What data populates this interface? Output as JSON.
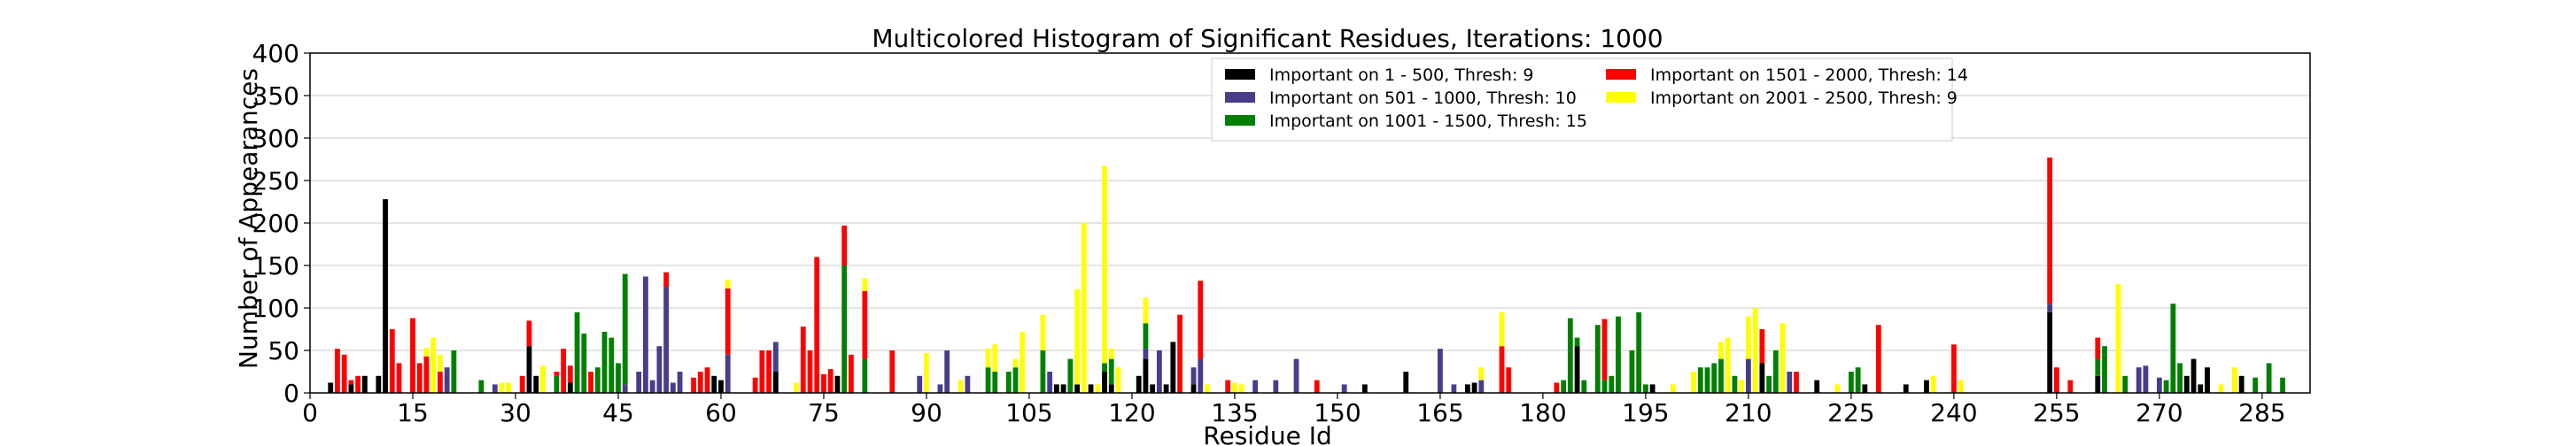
{
  "chart_data": {
    "type": "bar",
    "stacked": true,
    "title": "Multicolored Histogram of Significant Residues, Iterations: 1000",
    "xlabel": "Residue Id",
    "ylabel": "Number of Appearances",
    "xlim": [
      0,
      292
    ],
    "ylim": [
      0,
      400
    ],
    "xticks": [
      0,
      15,
      30,
      45,
      60,
      75,
      90,
      105,
      120,
      135,
      150,
      165,
      180,
      195,
      210,
      225,
      240,
      255,
      270,
      285
    ],
    "yticks": [
      0,
      50,
      100,
      150,
      200,
      250,
      300,
      350,
      400
    ],
    "grid": true,
    "legend_position": "top-center",
    "colors": {
      "s1": "#000000",
      "s2": "#483d8b",
      "s3": "#008000",
      "s4": "#ff0000",
      "s5": "#ffff00"
    },
    "series": [
      {
        "key": "s1",
        "name": "Important on 1 - 500, Thresh: 9"
      },
      {
        "key": "s2",
        "name": "Important on 501 - 1000, Thresh: 10"
      },
      {
        "key": "s3",
        "name": "Important on 1001 - 1500, Thresh: 15"
      },
      {
        "key": "s4",
        "name": "Important on 1501 - 2000, Thresh: 14"
      },
      {
        "key": "s5",
        "name": "Important on 2001 - 2500, Thresh: 9"
      }
    ],
    "bars": [
      [
        3,
        12,
        0,
        0,
        0,
        0
      ],
      [
        4,
        0,
        0,
        0,
        52,
        0
      ],
      [
        5,
        0,
        0,
        0,
        45,
        0
      ],
      [
        6,
        10,
        0,
        0,
        5,
        0
      ],
      [
        7,
        0,
        0,
        0,
        20,
        0
      ],
      [
        8,
        20,
        0,
        0,
        0,
        0
      ],
      [
        10,
        20,
        0,
        0,
        0,
        0
      ],
      [
        11,
        228,
        0,
        0,
        0,
        0
      ],
      [
        12,
        0,
        0,
        0,
        75,
        0
      ],
      [
        13,
        0,
        0,
        0,
        35,
        0
      ],
      [
        15,
        0,
        0,
        0,
        88,
        0
      ],
      [
        16,
        0,
        0,
        0,
        35,
        0
      ],
      [
        17,
        0,
        0,
        0,
        43,
        10
      ],
      [
        18,
        0,
        0,
        0,
        0,
        65
      ],
      [
        19,
        0,
        0,
        0,
        25,
        20
      ],
      [
        20,
        0,
        30,
        0,
        0,
        0
      ],
      [
        21,
        0,
        0,
        50,
        0,
        0
      ],
      [
        25,
        0,
        0,
        15,
        0,
        0
      ],
      [
        27,
        0,
        10,
        0,
        0,
        0
      ],
      [
        28,
        0,
        0,
        0,
        0,
        12
      ],
      [
        29,
        0,
        0,
        0,
        0,
        12
      ],
      [
        31,
        0,
        0,
        0,
        20,
        0
      ],
      [
        32,
        55,
        0,
        0,
        30,
        0
      ],
      [
        33,
        20,
        0,
        0,
        0,
        0
      ],
      [
        34,
        0,
        0,
        0,
        0,
        32
      ],
      [
        36,
        0,
        0,
        20,
        5,
        0
      ],
      [
        37,
        0,
        0,
        0,
        52,
        0
      ],
      [
        38,
        12,
        0,
        0,
        20,
        0
      ],
      [
        39,
        0,
        0,
        95,
        0,
        0
      ],
      [
        40,
        0,
        0,
        70,
        0,
        0
      ],
      [
        41,
        0,
        0,
        0,
        25,
        0
      ],
      [
        42,
        0,
        0,
        30,
        0,
        0
      ],
      [
        43,
        0,
        0,
        72,
        0,
        0
      ],
      [
        44,
        0,
        0,
        65,
        0,
        0
      ],
      [
        45,
        0,
        0,
        35,
        0,
        0
      ],
      [
        46,
        0,
        10,
        130,
        0,
        0
      ],
      [
        48,
        0,
        25,
        0,
        0,
        0
      ],
      [
        49,
        0,
        137,
        0,
        0,
        0
      ],
      [
        50,
        0,
        15,
        0,
        0,
        0
      ],
      [
        51,
        0,
        55,
        0,
        0,
        0
      ],
      [
        52,
        0,
        125,
        0,
        17,
        0
      ],
      [
        53,
        0,
        12,
        0,
        0,
        0
      ],
      [
        54,
        0,
        25,
        0,
        0,
        0
      ],
      [
        56,
        0,
        0,
        0,
        18,
        0
      ],
      [
        57,
        0,
        0,
        0,
        25,
        0
      ],
      [
        58,
        0,
        0,
        0,
        30,
        0
      ],
      [
        59,
        20,
        0,
        0,
        0,
        0
      ],
      [
        60,
        15,
        0,
        0,
        0,
        0
      ],
      [
        61,
        0,
        45,
        0,
        78,
        10
      ],
      [
        65,
        0,
        0,
        0,
        18,
        0
      ],
      [
        66,
        0,
        0,
        0,
        50,
        0
      ],
      [
        67,
        0,
        0,
        0,
        50,
        0
      ],
      [
        68,
        25,
        35,
        0,
        0,
        0
      ],
      [
        71,
        0,
        0,
        0,
        0,
        12
      ],
      [
        72,
        0,
        0,
        0,
        78,
        0
      ],
      [
        73,
        0,
        0,
        0,
        50,
        0
      ],
      [
        74,
        0,
        0,
        0,
        160,
        0
      ],
      [
        75,
        0,
        0,
        0,
        22,
        0
      ],
      [
        76,
        0,
        0,
        0,
        28,
        0
      ],
      [
        77,
        20,
        0,
        0,
        0,
        0
      ],
      [
        78,
        0,
        0,
        150,
        47,
        0
      ],
      [
        79,
        0,
        0,
        0,
        45,
        0
      ],
      [
        81,
        0,
        0,
        40,
        80,
        15
      ],
      [
        85,
        0,
        0,
        0,
        50,
        0
      ],
      [
        89,
        0,
        20,
        0,
        0,
        0
      ],
      [
        90,
        0,
        0,
        0,
        0,
        47
      ],
      [
        92,
        0,
        10,
        0,
        0,
        0
      ],
      [
        93,
        0,
        50,
        0,
        0,
        0
      ],
      [
        95,
        0,
        0,
        0,
        0,
        15
      ],
      [
        96,
        0,
        20,
        0,
        0,
        0
      ],
      [
        99,
        0,
        0,
        30,
        0,
        22
      ],
      [
        100,
        0,
        0,
        25,
        0,
        32
      ],
      [
        102,
        0,
        0,
        25,
        0,
        0
      ],
      [
        103,
        0,
        0,
        30,
        0,
        10
      ],
      [
        104,
        0,
        0,
        0,
        0,
        72
      ],
      [
        107,
        0,
        0,
        50,
        0,
        42
      ],
      [
        108,
        0,
        25,
        0,
        0,
        0
      ],
      [
        109,
        10,
        0,
        0,
        0,
        0
      ],
      [
        110,
        10,
        0,
        0,
        0,
        0
      ],
      [
        111,
        0,
        0,
        40,
        0,
        0
      ],
      [
        112,
        10,
        0,
        0,
        0,
        112
      ],
      [
        113,
        0,
        0,
        0,
        0,
        200
      ],
      [
        114,
        10,
        0,
        0,
        0,
        0
      ],
      [
        115,
        0,
        0,
        0,
        0,
        10
      ],
      [
        116,
        25,
        0,
        10,
        0,
        232
      ],
      [
        117,
        10,
        0,
        30,
        0,
        12
      ],
      [
        118,
        0,
        0,
        0,
        0,
        30
      ],
      [
        121,
        20,
        0,
        0,
        0,
        0
      ],
      [
        122,
        40,
        12,
        30,
        0,
        30
      ],
      [
        123,
        10,
        0,
        0,
        0,
        0
      ],
      [
        124,
        0,
        50,
        0,
        0,
        0
      ],
      [
        125,
        10,
        0,
        0,
        0,
        0
      ],
      [
        126,
        60,
        0,
        0,
        0,
        0
      ],
      [
        127,
        0,
        0,
        0,
        92,
        0
      ],
      [
        129,
        10,
        20,
        0,
        0,
        0
      ],
      [
        130,
        0,
        40,
        0,
        92,
        0
      ],
      [
        131,
        0,
        0,
        0,
        0,
        10
      ],
      [
        134,
        0,
        0,
        0,
        15,
        0
      ],
      [
        135,
        0,
        0,
        0,
        0,
        12
      ],
      [
        136,
        0,
        0,
        0,
        0,
        10
      ],
      [
        138,
        0,
        15,
        0,
        0,
        0
      ],
      [
        141,
        0,
        15,
        0,
        0,
        0
      ],
      [
        144,
        0,
        40,
        0,
        0,
        0
      ],
      [
        147,
        0,
        0,
        0,
        15,
        0
      ],
      [
        151,
        0,
        10,
        0,
        0,
        0
      ],
      [
        154,
        10,
        0,
        0,
        0,
        0
      ],
      [
        160,
        25,
        0,
        0,
        0,
        0
      ],
      [
        165,
        0,
        52,
        0,
        0,
        0
      ],
      [
        167,
        0,
        10,
        0,
        0,
        0
      ],
      [
        169,
        10,
        0,
        0,
        0,
        0
      ],
      [
        170,
        12,
        0,
        0,
        0,
        0
      ],
      [
        171,
        0,
        15,
        0,
        0,
        15
      ],
      [
        174,
        0,
        0,
        0,
        55,
        40
      ],
      [
        175,
        0,
        0,
        0,
        30,
        0
      ],
      [
        182,
        0,
        0,
        0,
        12,
        0
      ],
      [
        183,
        0,
        0,
        15,
        0,
        0
      ],
      [
        184,
        0,
        0,
        88,
        0,
        0
      ],
      [
        185,
        55,
        0,
        10,
        0,
        0
      ],
      [
        186,
        0,
        0,
        15,
        0,
        0
      ],
      [
        188,
        0,
        0,
        80,
        0,
        0
      ],
      [
        189,
        0,
        0,
        15,
        72,
        0
      ],
      [
        190,
        0,
        0,
        20,
        0,
        0
      ],
      [
        191,
        0,
        0,
        90,
        0,
        0
      ],
      [
        193,
        0,
        0,
        50,
        0,
        0
      ],
      [
        194,
        0,
        0,
        95,
        0,
        0
      ],
      [
        195,
        0,
        0,
        10,
        0,
        0
      ],
      [
        196,
        10,
        0,
        0,
        0,
        0
      ],
      [
        199,
        0,
        0,
        0,
        0,
        10
      ],
      [
        202,
        0,
        0,
        0,
        0,
        25
      ],
      [
        203,
        0,
        0,
        30,
        0,
        0
      ],
      [
        204,
        0,
        0,
        30,
        0,
        0
      ],
      [
        205,
        0,
        0,
        35,
        0,
        0
      ],
      [
        206,
        0,
        0,
        40,
        0,
        20
      ],
      [
        207,
        0,
        0,
        0,
        0,
        65
      ],
      [
        208,
        0,
        0,
        20,
        0,
        0
      ],
      [
        209,
        0,
        0,
        0,
        0,
        15
      ],
      [
        210,
        0,
        40,
        0,
        0,
        50
      ],
      [
        211,
        0,
        0,
        0,
        0,
        100
      ],
      [
        212,
        35,
        0,
        0,
        40,
        0
      ],
      [
        213,
        0,
        0,
        20,
        0,
        0
      ],
      [
        214,
        0,
        0,
        50,
        0,
        0
      ],
      [
        215,
        0,
        0,
        0,
        0,
        82
      ],
      [
        216,
        0,
        25,
        0,
        0,
        0
      ],
      [
        217,
        0,
        0,
        0,
        25,
        0
      ],
      [
        220,
        15,
        0,
        0,
        0,
        0
      ],
      [
        223,
        0,
        0,
        0,
        0,
        10
      ],
      [
        225,
        0,
        0,
        25,
        0,
        0
      ],
      [
        226,
        0,
        0,
        30,
        0,
        0
      ],
      [
        227,
        10,
        0,
        0,
        0,
        0
      ],
      [
        229,
        0,
        0,
        0,
        80,
        0
      ],
      [
        233,
        10,
        0,
        0,
        0,
        0
      ],
      [
        236,
        15,
        0,
        0,
        0,
        0
      ],
      [
        237,
        0,
        0,
        0,
        0,
        20
      ],
      [
        240,
        0,
        0,
        0,
        57,
        0
      ],
      [
        241,
        0,
        0,
        0,
        0,
        15
      ],
      [
        254,
        95,
        10,
        0,
        172,
        0
      ],
      [
        255,
        0,
        0,
        0,
        30,
        0
      ],
      [
        257,
        0,
        0,
        0,
        15,
        0
      ],
      [
        261,
        20,
        0,
        20,
        25,
        0
      ],
      [
        262,
        0,
        0,
        55,
        0,
        0
      ],
      [
        264,
        0,
        0,
        0,
        0,
        128
      ],
      [
        265,
        0,
        0,
        20,
        0,
        0
      ],
      [
        267,
        0,
        30,
        0,
        0,
        0
      ],
      [
        268,
        0,
        32,
        0,
        0,
        0
      ],
      [
        270,
        0,
        18,
        0,
        0,
        0
      ],
      [
        271,
        0,
        0,
        15,
        0,
        0
      ],
      [
        272,
        0,
        0,
        105,
        0,
        0
      ],
      [
        273,
        0,
        0,
        35,
        0,
        0
      ],
      [
        274,
        20,
        0,
        0,
        0,
        0
      ],
      [
        275,
        40,
        0,
        0,
        0,
        0
      ],
      [
        276,
        10,
        0,
        0,
        0,
        0
      ],
      [
        277,
        30,
        0,
        0,
        0,
        0
      ],
      [
        279,
        0,
        0,
        0,
        0,
        10
      ],
      [
        281,
        0,
        0,
        0,
        0,
        30
      ],
      [
        282,
        20,
        0,
        0,
        0,
        0
      ],
      [
        284,
        0,
        0,
        18,
        0,
        0
      ],
      [
        286,
        0,
        0,
        35,
        0,
        0
      ],
      [
        288,
        0,
        0,
        18,
        0,
        0
      ]
    ]
  }
}
